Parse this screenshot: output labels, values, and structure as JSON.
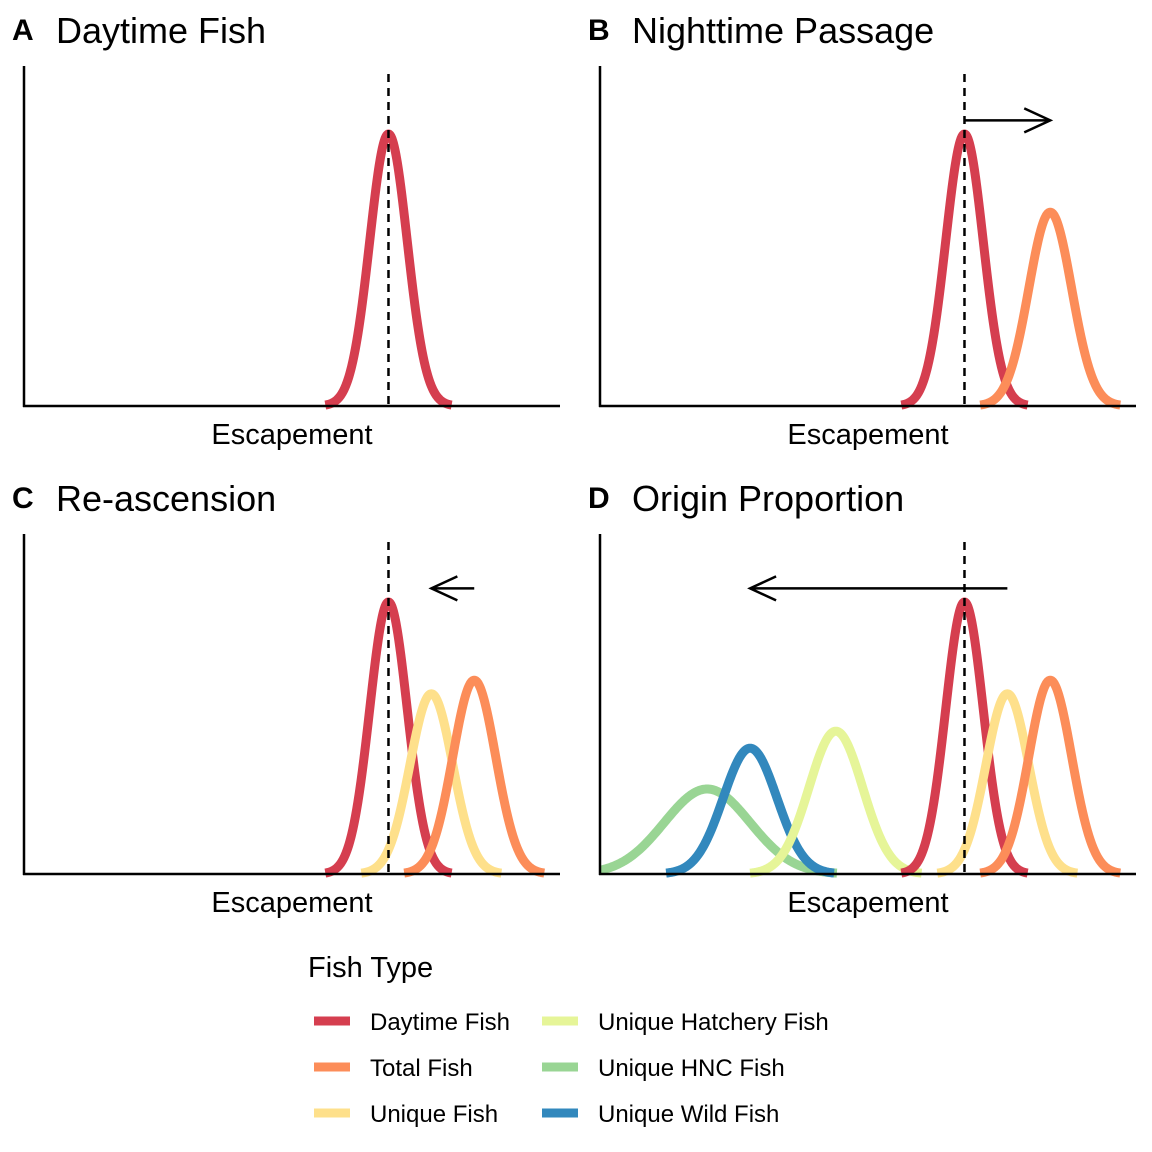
{
  "chart_data": [
    {
      "type": "line",
      "letter": "A",
      "title": "Daytime Fish",
      "xlabel": "Escapement",
      "ylabel": "",
      "xlim": [
        0,
        100
      ],
      "ylim": [
        0,
        1
      ],
      "reference_line_x": 68,
      "series": [
        {
          "name": "Daytime Fish",
          "color": "#D53E4F",
          "mean": 68,
          "sd": 3.5,
          "peak": 0.8
        }
      ],
      "arrows": []
    },
    {
      "type": "line",
      "letter": "B",
      "title": "Nighttime Passage",
      "xlabel": "Escapement",
      "ylabel": "",
      "xlim": [
        0,
        100
      ],
      "ylim": [
        0,
        1
      ],
      "reference_line_x": 68,
      "series": [
        {
          "name": "Daytime Fish",
          "color": "#D53E4F",
          "mean": 68,
          "sd": 3.5,
          "peak": 0.8
        },
        {
          "name": "Total Fish",
          "color": "#FC8D59",
          "mean": 84,
          "sd": 4,
          "peak": 0.57
        }
      ],
      "arrows": [
        {
          "from": 68,
          "to": 84,
          "y": 0.84
        }
      ]
    },
    {
      "type": "line",
      "letter": "C",
      "title": "Re-ascension",
      "xlabel": "Escapement",
      "ylabel": "",
      "xlim": [
        0,
        100
      ],
      "ylim": [
        0,
        1
      ],
      "reference_line_x": 68,
      "series": [
        {
          "name": "Daytime Fish",
          "color": "#D53E4F",
          "mean": 68,
          "sd": 3.5,
          "peak": 0.8
        },
        {
          "name": "Unique Fish",
          "color": "#FEE08B",
          "mean": 76,
          "sd": 4,
          "peak": 0.53
        },
        {
          "name": "Total Fish",
          "color": "#FC8D59",
          "mean": 84,
          "sd": 4,
          "peak": 0.57
        }
      ],
      "arrows": [
        {
          "from": 84,
          "to": 76,
          "y": 0.84
        }
      ]
    },
    {
      "type": "line",
      "letter": "D",
      "title": "Origin Proportion",
      "xlabel": "Escapement",
      "ylabel": "",
      "xlim": [
        0,
        100
      ],
      "ylim": [
        0,
        1
      ],
      "reference_line_x": 68,
      "series": [
        {
          "name": "Unique HNC Fish",
          "color": "#99D594",
          "mean": 20,
          "sd": 8,
          "peak": 0.25
        },
        {
          "name": "Unique Wild Fish",
          "color": "#3288BD",
          "mean": 28,
          "sd": 5,
          "peak": 0.37
        },
        {
          "name": "Unique Hatchery Fish",
          "color": "#E6F598",
          "mean": 44,
          "sd": 5,
          "peak": 0.42
        },
        {
          "name": "Daytime Fish",
          "color": "#D53E4F",
          "mean": 68,
          "sd": 3.5,
          "peak": 0.8
        },
        {
          "name": "Unique Fish",
          "color": "#FEE08B",
          "mean": 76,
          "sd": 4,
          "peak": 0.53
        },
        {
          "name": "Total Fish",
          "color": "#FC8D59",
          "mean": 84,
          "sd": 4,
          "peak": 0.57
        }
      ],
      "arrows": [
        {
          "from": 76,
          "to": 28,
          "y": 0.84
        }
      ]
    }
  ],
  "legend": {
    "title": "Fish Type",
    "items": [
      {
        "label": "Daytime Fish",
        "color": "#D53E4F"
      },
      {
        "label": "Total Fish",
        "color": "#FC8D59"
      },
      {
        "label": "Unique Fish",
        "color": "#FEE08B"
      },
      {
        "label": "Unique Hatchery Fish",
        "color": "#E6F598"
      },
      {
        "label": "Unique HNC Fish",
        "color": "#99D594"
      },
      {
        "label": "Unique Wild Fish",
        "color": "#3288BD"
      }
    ]
  }
}
